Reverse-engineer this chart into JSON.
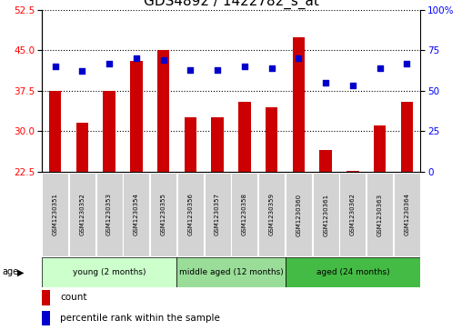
{
  "title": "GDS4892 / 1422782_s_at",
  "samples": [
    "GSM1230351",
    "GSM1230352",
    "GSM1230353",
    "GSM1230354",
    "GSM1230355",
    "GSM1230356",
    "GSM1230357",
    "GSM1230358",
    "GSM1230359",
    "GSM1230360",
    "GSM1230361",
    "GSM1230362",
    "GSM1230363",
    "GSM1230364"
  ],
  "counts": [
    37.5,
    31.5,
    37.5,
    43.0,
    45.0,
    32.5,
    32.5,
    35.5,
    34.5,
    47.5,
    26.5,
    22.7,
    31.0,
    35.5
  ],
  "percentiles": [
    65,
    62,
    67,
    70,
    69,
    63,
    63,
    65,
    64,
    70,
    55,
    53,
    64,
    67
  ],
  "left_ylim": [
    22.5,
    52.5
  ],
  "left_yticks": [
    22.5,
    30.0,
    37.5,
    45.0,
    52.5
  ],
  "right_ylim": [
    0,
    100
  ],
  "right_yticks": [
    0,
    25,
    50,
    75,
    100
  ],
  "right_yticklabels": [
    "0",
    "25",
    "50",
    "75",
    "100%"
  ],
  "bar_color": "#cc0000",
  "dot_color": "#0000cc",
  "groups": [
    {
      "label": "young (2 months)",
      "start": 0,
      "end": 5,
      "color": "#ccffcc"
    },
    {
      "label": "middle aged (12 months)",
      "start": 5,
      "end": 9,
      "color": "#99dd99"
    },
    {
      "label": "aged (24 months)",
      "start": 9,
      "end": 14,
      "color": "#44bb44"
    }
  ],
  "age_label": "age",
  "legend_count_label": "count",
  "legend_pct_label": "percentile rank within the sample",
  "background_color": "#ffffff",
  "title_fontsize": 11,
  "tick_fontsize": 7.5,
  "sample_fontsize": 5.0,
  "group_fontsize": 6.5,
  "legend_fontsize": 7.5
}
